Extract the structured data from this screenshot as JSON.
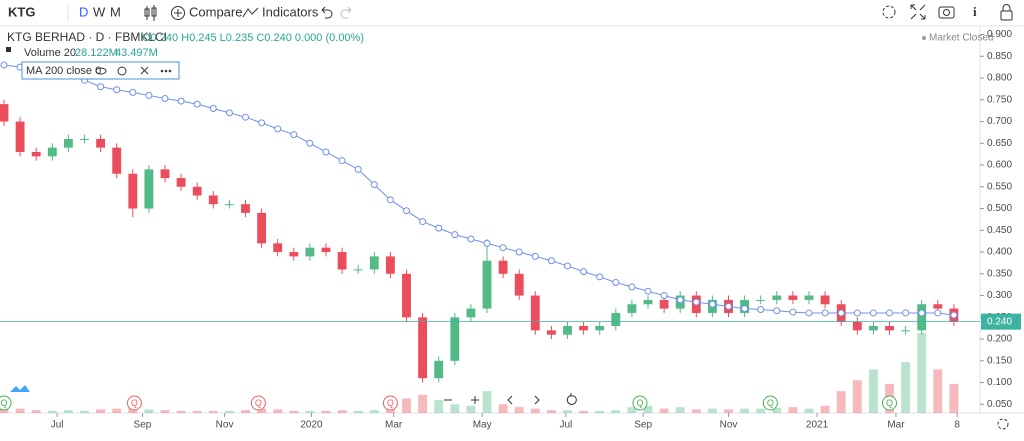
{
  "toolbar": {
    "symbol": "KTG",
    "intervals": [
      "D",
      "W",
      "M"
    ],
    "compare": "Compare",
    "indicators": "Indicators"
  },
  "legend": {
    "title": "KTG BERHAD · D · FBMKLCI",
    "ohlc": "O0.240 H0.245 L0.235 C0.240 0.000 (0.00%)",
    "volume_name": "Volume 20",
    "volume_values": [
      "28.122M",
      "43.497M"
    ],
    "ma_name": "MA 200 close 0"
  },
  "status": "Market Closed",
  "chart_data": {
    "type": "candlestick",
    "up_color": "#53b987",
    "down_color": "#eb4d5c",
    "ma_color": "#6e8ff0",
    "open": [
      0.74,
      0.7,
      0.63,
      0.62,
      0.64,
      0.66,
      0.66,
      0.64,
      0.58,
      0.5,
      0.59,
      0.57,
      0.55,
      0.53,
      0.51,
      0.51,
      0.49,
      0.42,
      0.4,
      0.39,
      0.41,
      0.4,
      0.36,
      0.36,
      0.39,
      0.35,
      0.25,
      0.11,
      0.15,
      0.25,
      0.27,
      0.38,
      0.35,
      0.3,
      0.22,
      0.21,
      0.23,
      0.22,
      0.23,
      0.26,
      0.28,
      0.29,
      0.27,
      0.3,
      0.26,
      0.29,
      0.26,
      0.29,
      0.29,
      0.3,
      0.29,
      0.3,
      0.28,
      0.24,
      0.22,
      0.23,
      0.22,
      0.22,
      0.28,
      0.27
    ],
    "high": [
      0.75,
      0.71,
      0.64,
      0.65,
      0.67,
      0.67,
      0.67,
      0.65,
      0.59,
      0.6,
      0.6,
      0.58,
      0.56,
      0.54,
      0.52,
      0.52,
      0.5,
      0.43,
      0.41,
      0.42,
      0.42,
      0.41,
      0.37,
      0.4,
      0.4,
      0.36,
      0.26,
      0.16,
      0.26,
      0.28,
      0.43,
      0.39,
      0.36,
      0.31,
      0.23,
      0.24,
      0.24,
      0.24,
      0.27,
      0.29,
      0.3,
      0.3,
      0.31,
      0.31,
      0.3,
      0.3,
      0.3,
      0.3,
      0.31,
      0.31,
      0.31,
      0.31,
      0.29,
      0.25,
      0.24,
      0.24,
      0.23,
      0.29,
      0.29,
      0.28
    ],
    "low": [
      0.69,
      0.62,
      0.61,
      0.61,
      0.63,
      0.65,
      0.63,
      0.57,
      0.48,
      0.49,
      0.56,
      0.54,
      0.52,
      0.5,
      0.5,
      0.48,
      0.41,
      0.39,
      0.38,
      0.38,
      0.39,
      0.35,
      0.35,
      0.35,
      0.34,
      0.24,
      0.1,
      0.1,
      0.14,
      0.24,
      0.26,
      0.34,
      0.29,
      0.21,
      0.2,
      0.2,
      0.21,
      0.21,
      0.22,
      0.25,
      0.27,
      0.26,
      0.26,
      0.25,
      0.25,
      0.25,
      0.25,
      0.28,
      0.28,
      0.28,
      0.28,
      0.27,
      0.23,
      0.21,
      0.21,
      0.21,
      0.21,
      0.21,
      0.26,
      0.23
    ],
    "close": [
      0.7,
      0.63,
      0.62,
      0.64,
      0.66,
      0.66,
      0.64,
      0.58,
      0.5,
      0.59,
      0.57,
      0.55,
      0.53,
      0.51,
      0.51,
      0.49,
      0.42,
      0.4,
      0.39,
      0.41,
      0.4,
      0.36,
      0.36,
      0.39,
      0.35,
      0.25,
      0.11,
      0.15,
      0.25,
      0.27,
      0.38,
      0.35,
      0.3,
      0.22,
      0.21,
      0.23,
      0.22,
      0.23,
      0.26,
      0.28,
      0.29,
      0.27,
      0.3,
      0.26,
      0.29,
      0.26,
      0.29,
      0.29,
      0.3,
      0.29,
      0.3,
      0.28,
      0.24,
      0.22,
      0.23,
      0.22,
      0.22,
      0.28,
      0.27,
      0.24
    ],
    "volume": [
      8000000,
      6000000,
      4000000,
      3000000,
      4000000,
      3000000,
      5000000,
      6000000,
      15000000,
      5000000,
      4000000,
      3000000,
      3000000,
      3000000,
      3000000,
      4000000,
      6000000,
      5000000,
      3000000,
      3000000,
      3000000,
      4000000,
      3000000,
      4000000,
      8000000,
      20000000,
      25000000,
      18000000,
      12000000,
      10000000,
      30000000,
      12000000,
      8000000,
      6000000,
      4000000,
      4000000,
      3000000,
      3000000,
      4000000,
      8000000,
      10000000,
      6000000,
      8000000,
      5000000,
      6000000,
      5000000,
      6000000,
      6000000,
      7000000,
      8000000,
      6000000,
      10000000,
      30000000,
      45000000,
      60000000,
      40000000,
      70000000,
      110000000,
      60000000,
      40000000
    ],
    "ma_values": [
      0.83,
      0.825,
      0.82,
      0.815,
      0.81,
      0.795,
      0.78,
      0.773,
      0.767,
      0.76,
      0.753,
      0.747,
      0.74,
      0.73,
      0.72,
      0.71,
      0.697,
      0.683,
      0.67,
      0.65,
      0.63,
      0.61,
      0.59,
      0.555,
      0.52,
      0.495,
      0.47,
      0.455,
      0.44,
      0.43,
      0.42,
      0.41,
      0.4,
      0.39,
      0.38,
      0.368,
      0.355,
      0.343,
      0.33,
      0.32,
      0.31,
      0.3,
      0.29,
      0.285,
      0.28,
      0.275,
      0.27,
      0.268,
      0.265,
      0.262,
      0.26,
      0.26,
      0.26,
      0.26,
      0.26,
      0.26,
      0.26,
      0.26,
      0.26,
      0.255
    ],
    "last_price": {
      "value": 0.24,
      "label": "0.240"
    },
    "ylim": [
      0.03,
      0.915
    ],
    "yticks": [
      {
        "value": 0.05,
        "label": "0.050"
      },
      {
        "value": 0.1,
        "label": "0.100"
      },
      {
        "value": 0.15,
        "label": "0.150"
      },
      {
        "value": 0.2,
        "label": "0.200"
      },
      {
        "value": 0.25,
        "label": "0.250"
      },
      {
        "value": 0.3,
        "label": "0.300"
      },
      {
        "value": 0.35,
        "label": "0.350"
      },
      {
        "value": 0.4,
        "label": "0.400"
      },
      {
        "value": 0.45,
        "label": "0.450"
      },
      {
        "value": 0.5,
        "label": "0.500"
      },
      {
        "value": 0.55,
        "label": "0.550"
      },
      {
        "value": 0.6,
        "label": "0.600"
      },
      {
        "value": 0.65,
        "label": "0.650"
      },
      {
        "value": 0.7,
        "label": "0.700"
      },
      {
        "value": 0.75,
        "label": "0.750"
      },
      {
        "value": 0.8,
        "label": "0.800"
      },
      {
        "value": 0.85,
        "label": "0.850"
      },
      {
        "value": 0.9,
        "label": "0.900"
      }
    ],
    "xlim": [
      0,
      60
    ],
    "xticks": [
      {
        "value": 3.3,
        "label": "Jul"
      },
      {
        "value": 8.6,
        "label": "Sep"
      },
      {
        "value": 13.7,
        "label": "Nov"
      },
      {
        "value": 19.1,
        "label": "2020"
      },
      {
        "value": 24.2,
        "label": "Mar"
      },
      {
        "value": 29.7,
        "label": "May"
      },
      {
        "value": 34.9,
        "label": "Jul"
      },
      {
        "value": 39.7,
        "label": "Sep"
      },
      {
        "value": 45,
        "label": "Nov"
      },
      {
        "value": 50.5,
        "label": "2021"
      },
      {
        "value": 55.4,
        "label": "Mar"
      },
      {
        "value": 59.2,
        "label": "8"
      }
    ],
    "markers": [
      {
        "x": 0,
        "label": "Q",
        "color": "#4caf50"
      },
      {
        "x": 8.1,
        "label": "Q",
        "color": "#f06060"
      },
      {
        "x": 15.8,
        "label": "Q",
        "color": "#f06060"
      },
      {
        "x": 24,
        "label": "Q",
        "color": "#f06060"
      },
      {
        "x": 39.5,
        "label": "Q",
        "color": "#4caf50"
      },
      {
        "x": 47.6,
        "label": "Q",
        "color": "#4caf50"
      },
      {
        "x": 55,
        "label": "Q",
        "color": "#4caf50"
      }
    ]
  }
}
